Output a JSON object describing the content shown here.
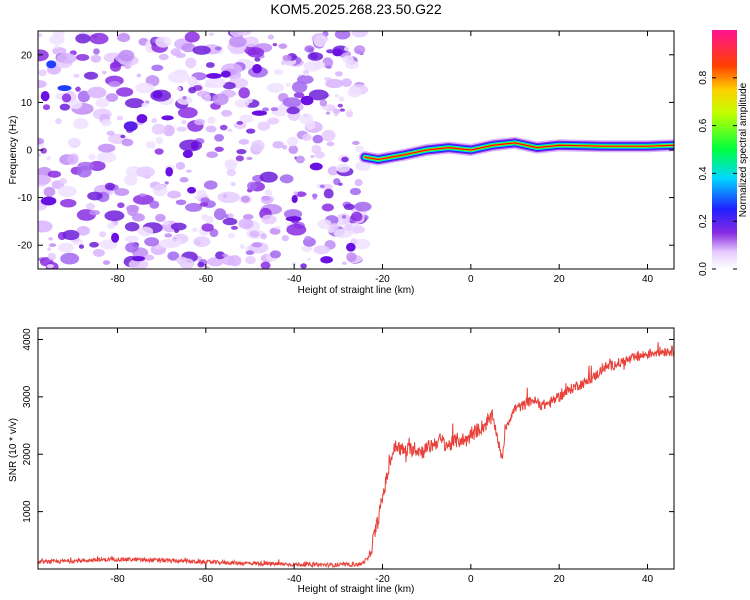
{
  "title": "KOM5.2025.268.23.50.G22",
  "colors": {
    "snr_line": "#e8413a",
    "spec_noise": "#8a2be2",
    "spec_line_core": "#ff0000"
  },
  "chart_data": [
    {
      "type": "heatmap",
      "name": "spectrogram",
      "xlabel": "Height of straight line (km)",
      "ylabel": "Frequency (Hz)",
      "xlim": [
        -98,
        46
      ],
      "ylim": [
        -25,
        25
      ],
      "xticks": [
        -80,
        -60,
        -40,
        -20,
        0,
        20,
        40
      ],
      "yticks": [
        -20,
        -10,
        0,
        10,
        20
      ],
      "colorbar": {
        "label": "Normalized spectral amplitude",
        "ticks": [
          0.0,
          0.2,
          0.4,
          0.6,
          0.8
        ],
        "range": [
          0,
          1
        ]
      },
      "noise_region_x": [
        -98,
        -24
      ],
      "signal_trace": {
        "x": [
          -24,
          -21,
          -18,
          -15,
          -10,
          -5,
          0,
          5,
          10,
          15,
          20,
          30,
          40,
          46
        ],
        "freq": [
          -1.5,
          -2,
          -1.5,
          -1,
          0,
          0.5,
          0,
          1,
          1.5,
          0.5,
          1,
          0.8,
          0.8,
          1
        ]
      }
    },
    {
      "type": "line",
      "name": "snr",
      "xlabel": "Height of straight line (km)",
      "ylabel": "SNR (10 * v/v)",
      "xlim": [
        -98,
        46
      ],
      "ylim": [
        0,
        4200
      ],
      "xticks": [
        -80,
        -60,
        -40,
        -20,
        0,
        20,
        40
      ],
      "yticks": [
        1000,
        2000,
        3000,
        4000
      ],
      "series": [
        {
          "name": "SNR",
          "x": [
            -98,
            -90,
            -80,
            -70,
            -60,
            -50,
            -40,
            -30,
            -25,
            -23,
            -22,
            -21,
            -20,
            -19,
            -18,
            -17,
            -15,
            -13,
            -11,
            -9,
            -7,
            -5,
            -3,
            -1,
            1,
            3,
            5,
            6,
            7,
            8,
            10,
            12,
            14,
            16,
            18,
            20,
            22,
            24,
            26,
            28,
            30,
            32,
            34,
            36,
            38,
            40,
            42,
            44,
            46
          ],
          "y": [
            120,
            140,
            170,
            150,
            120,
            100,
            80,
            70,
            80,
            200,
            550,
            850,
            1250,
            1600,
            1950,
            2150,
            2050,
            2100,
            2050,
            2150,
            2250,
            2150,
            2250,
            2250,
            2400,
            2500,
            2650,
            2300,
            1900,
            2500,
            2800,
            2850,
            2950,
            2850,
            2900,
            3000,
            3100,
            3200,
            3250,
            3350,
            3500,
            3550,
            3600,
            3650,
            3700,
            3750,
            3780,
            3800,
            3800
          ]
        }
      ]
    }
  ]
}
